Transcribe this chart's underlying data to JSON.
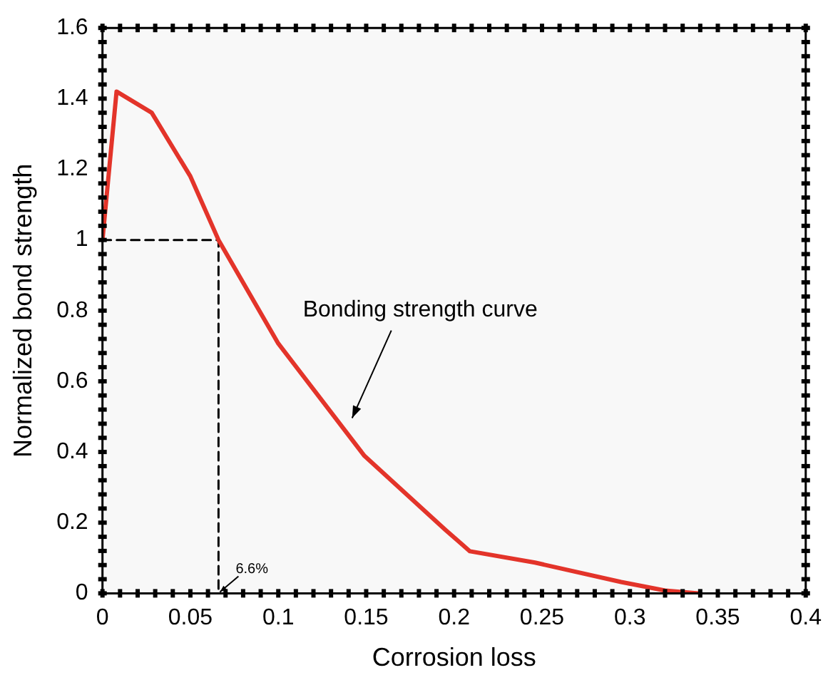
{
  "chart_data": {
    "type": "line",
    "xlabel": "Corrosion loss",
    "ylabel": "Normalized bond strength",
    "xlim": [
      0,
      0.4
    ],
    "xticks": [
      0,
      0.05,
      0.1,
      0.15,
      0.2,
      0.25,
      0.3,
      0.35,
      0.4
    ],
    "ylim": [
      0,
      1.6
    ],
    "yticks": [
      0,
      0.2,
      0.4,
      0.6,
      0.8,
      1,
      1.2,
      1.4,
      1.6
    ],
    "grid": false,
    "legend": false,
    "marker": "none",
    "series": [
      {
        "color": "#e3342a",
        "line_style": "solid",
        "x": [
          0,
          0.008,
          0.028,
          0.05,
          0.066,
          0.1,
          0.149,
          0.195,
          0.209,
          0.246,
          0.295,
          0.32,
          0.339
        ],
        "values": [
          1.0,
          1.42,
          1.36,
          1.18,
          1.0,
          0.707,
          0.389,
          0.18,
          0.119,
          0.087,
          0.032,
          0.008,
          0
        ]
      },
      {
        "color": "#000000",
        "line_style": "dashed",
        "x": [
          0,
          0.066,
          0.066
        ],
        "values": [
          1,
          1,
          0
        ]
      }
    ],
    "annotations": [
      "Bonding strength curve",
      {
        "text": "6.6%",
        "x": 0.066,
        "y": 0
      }
    ]
  }
}
